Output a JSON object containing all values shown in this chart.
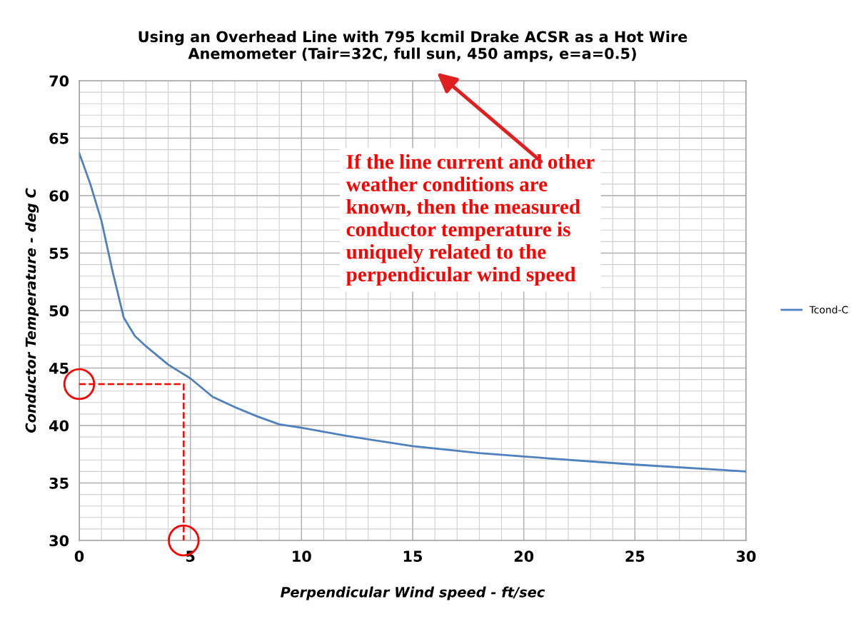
{
  "chart_data": {
    "type": "line",
    "title": "Using an Overhead Line with 795 kcmil Drake ACSR as a Hot Wire\nAnemometer (Tair=32C, full sun, 450 amps, e=a=0.5)",
    "xlabel": "Perpendicular Wind speed - ft/sec",
    "ylabel": "Conductor Temperature - deg C",
    "series": [
      {
        "name": "Tcond-C",
        "color": "#4f81bd",
        "x": [
          0,
          0.5,
          1,
          1.5,
          2,
          2.5,
          3,
          4,
          5,
          6,
          7,
          8,
          9,
          10,
          12,
          15,
          18,
          20,
          25,
          30
        ],
        "values": [
          63.7,
          61,
          57.8,
          53.4,
          49.4,
          47.8,
          46.9,
          45.3,
          44.1,
          42.5,
          41.6,
          40.8,
          40.1,
          39.8,
          39.1,
          38.2,
          37.6,
          37.3,
          36.6,
          36.0
        ]
      },
      {
        "type": "line",
        "color": "#ff0000",
        "line_style": "dashed",
        "x": [
          0,
          4.7,
          4.7
        ],
        "values": [
          43.6,
          43.6,
          30
        ]
      },
      {
        "type": "scatter",
        "color": "#ff0000",
        "marker": "circle",
        "x": [
          0,
          4.7
        ],
        "values": [
          43.6,
          30
        ]
      }
    ],
    "annotations": [
      "If the line current and other\nweather conditions are\nknown, then the measured\nconductor temperature is\nuniquely related to the\nperpendicular wind speed"
    ],
    "xlim": [
      0,
      30
    ],
    "ylim": [
      30,
      70
    ],
    "xticks": [
      0,
      5,
      10,
      15,
      20,
      25,
      30
    ],
    "yticks": [
      30,
      35,
      40,
      45,
      50,
      55,
      60,
      65,
      70
    ],
    "grid": true,
    "legend": "right",
    "line_style": "solid",
    "marker": "none"
  }
}
